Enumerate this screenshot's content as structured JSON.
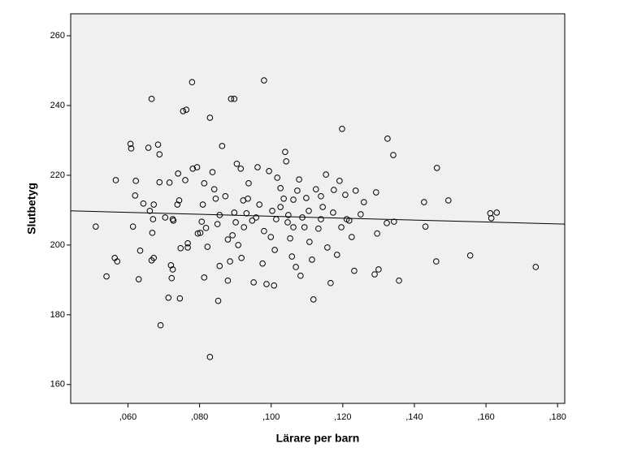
{
  "chart_data": {
    "type": "scatter",
    "x_label": "Lärare per barn",
    "y_label": "Slutbetyg",
    "xlim": [
      0.044,
      0.182
    ],
    "ylim": [
      154.6,
      266.3
    ],
    "xticks": [
      {
        "value": 0.06,
        "label": ",060"
      },
      {
        "value": 0.08,
        "label": ",080"
      },
      {
        "value": 0.1,
        "label": ",100"
      },
      {
        "value": 0.12,
        "label": ",120"
      },
      {
        "value": 0.14,
        "label": ",140"
      },
      {
        "value": 0.16,
        "label": ",160"
      },
      {
        "value": 0.18,
        "label": ",180"
      }
    ],
    "yticks": [
      160,
      180,
      200,
      220,
      240,
      260
    ],
    "grid": false,
    "color": "#000000",
    "background": "#f0f0f0",
    "x": [
      0.051,
      0.054,
      0.0563,
      0.057,
      0.0566,
      0.0607,
      0.0609,
      0.0614,
      0.062,
      0.0622,
      0.063,
      0.0634,
      0.0643,
      0.0657,
      0.0666,
      0.0668,
      0.067,
      0.0672,
      0.0661,
      0.0672,
      0.0666,
      0.0684,
      0.0688,
      0.0691,
      0.0688,
      0.0704,
      0.0713,
      0.0716,
      0.072,
      0.0725,
      0.0722,
      0.0725,
      0.0727,
      0.0738,
      0.074,
      0.0745,
      0.0747,
      0.0743,
      0.076,
      0.0754,
      0.0763,
      0.0767,
      0.0767,
      0.0779,
      0.0781,
      0.0793,
      0.0795,
      0.0802,
      0.0806,
      0.0809,
      0.0813,
      0.0813,
      0.0818,
      0.0822,
      0.0829,
      0.0829,
      0.0836,
      0.0841,
      0.0845,
      0.085,
      0.0852,
      0.0856,
      0.0856,
      0.0863,
      0.0872,
      0.0879,
      0.0879,
      0.0885,
      0.0888,
      0.0897,
      0.0897,
      0.0901,
      0.0904,
      0.0908,
      0.0915,
      0.0917,
      0.0922,
      0.0931,
      0.0937,
      0.0947,
      0.0951,
      0.0962,
      0.0967,
      0.0976,
      0.098,
      0.0987,
      0.0994,
      0.0999,
      0.1003,
      0.1008,
      0.101,
      0.1017,
      0.1026,
      0.1035,
      0.1039,
      0.1042,
      0.1046,
      0.1053,
      0.1058,
      0.1062,
      0.1069,
      0.1073,
      0.1078,
      0.1082,
      0.1087,
      0.1098,
      0.1107,
      0.1114,
      0.1118,
      0.1125,
      0.1132,
      0.1144,
      0.1153,
      0.1157,
      0.1166,
      0.1175,
      0.1184,
      0.1191,
      0.1198,
      0.1207,
      0.1211,
      0.1225,
      0.1232,
      0.1236,
      0.125,
      0.1259,
      0.1289,
      0.1293,
      0.1296,
      0.13,
      0.1325,
      0.1323,
      0.1341,
      0.1343,
      0.1357,
      0.1427,
      0.1431,
      0.1461,
      0.1463,
      0.1495,
      0.1556,
      0.1612,
      0.1615,
      0.163,
      0.1739,
      0.0924,
      0.0958,
      0.1014,
      0.1048,
      0.1093,
      0.1139,
      0.1173,
      0.0892,
      0.098,
      0.1062,
      0.1105,
      0.1026,
      0.0935,
      0.1139,
      0.1196,
      0.1218
    ],
    "values": [
      205.3,
      191,
      196.3,
      195.3,
      218.6,
      229,
      227.7,
      205.3,
      214.2,
      218.4,
      190.2,
      198.4,
      211.9,
      227.9,
      241.9,
      203.5,
      207.4,
      211.6,
      209.8,
      196.3,
      195.6,
      228.8,
      226,
      177,
      218,
      207.9,
      184.9,
      217.9,
      194.2,
      193,
      190.5,
      207.4,
      207,
      211.6,
      220.5,
      184.7,
      199.1,
      212.8,
      218.6,
      238.4,
      238.8,
      200.5,
      199.3,
      246.7,
      221.9,
      222.3,
      203.3,
      203.5,
      206.7,
      211.6,
      190.7,
      217.7,
      204.9,
      199.5,
      236.5,
      167.9,
      220.9,
      216,
      213.3,
      206,
      184,
      194,
      208.6,
      228.4,
      214,
      189.8,
      201.6,
      195.3,
      241.9,
      241.9,
      209.3,
      206.5,
      223.3,
      200,
      221.9,
      196.3,
      212.8,
      209.1,
      217.7,
      207,
      189.3,
      222.3,
      211.6,
      194.7,
      247.2,
      188.8,
      221.2,
      202.3,
      209.8,
      188.4,
      198.6,
      219.3,
      216.3,
      213.3,
      226.7,
      224,
      206.5,
      201.9,
      196.7,
      213,
      193.7,
      215.6,
      218.8,
      191.2,
      207.9,
      213.5,
      200.9,
      195.8,
      184.4,
      216,
      204.7,
      210.9,
      220.2,
      199.3,
      189.1,
      215.8,
      197.2,
      218.4,
      233.3,
      214.4,
      207.4,
      202.3,
      192.6,
      215.6,
      208.8,
      212.3,
      191.6,
      215.1,
      203.3,
      193,
      230.5,
      206.3,
      225.8,
      206.7,
      189.8,
      212.3,
      205.3,
      195.3,
      222.1,
      212.8,
      197,
      209.1,
      207.7,
      209.3,
      193.7,
      205.1,
      207.9,
      207.4,
      208.6,
      205.1,
      207.4,
      209.3,
      202.8,
      204,
      205.1,
      209.8,
      210.9,
      213.3,
      214,
      205.1,
      207
    ],
    "fit_line": {
      "x": [
        0.044,
        0.182
      ],
      "y": [
        209.8,
        206.0
      ]
    }
  }
}
